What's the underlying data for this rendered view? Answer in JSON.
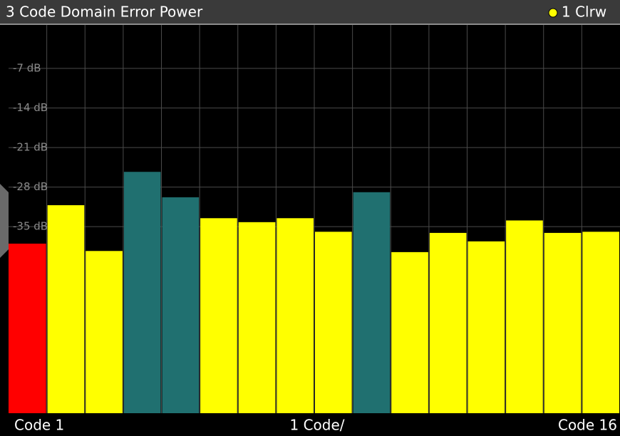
{
  "chart_data": {
    "type": "bar",
    "title": "3 Code Domain Error Power",
    "trace": {
      "label": "1 Clrw",
      "color": "#ffff00"
    },
    "values": [
      -38.0,
      -31.2,
      -39.3,
      -25.3,
      -29.8,
      -33.5,
      -34.2,
      -33.5,
      -35.9,
      -28.9,
      -39.5,
      -36.1,
      -37.6,
      -33.9,
      -36.1,
      -35.9
    ],
    "colors": [
      "#ff0000",
      "#ffff00",
      "#ffff00",
      "#207070",
      "#207070",
      "#ffff00",
      "#ffff00",
      "#ffff00",
      "#ffff00",
      "#207070",
      "#ffff00",
      "#ffff00",
      "#ffff00",
      "#ffff00",
      "#ffff00",
      "#ffff00"
    ],
    "ylim": [
      -68,
      0
    ],
    "yticks": [
      {
        "value": -7,
        "label": "-7 dB"
      },
      {
        "value": -14,
        "label": "-14 dB"
      },
      {
        "value": -21,
        "label": "-21 dB"
      },
      {
        "value": -28,
        "label": "-28 dB"
      },
      {
        "value": -35,
        "label": "-35 dB"
      }
    ],
    "grid": true,
    "x_labels": {
      "start": "Code 1",
      "center": "1 Code/",
      "end": "Code 16"
    }
  }
}
